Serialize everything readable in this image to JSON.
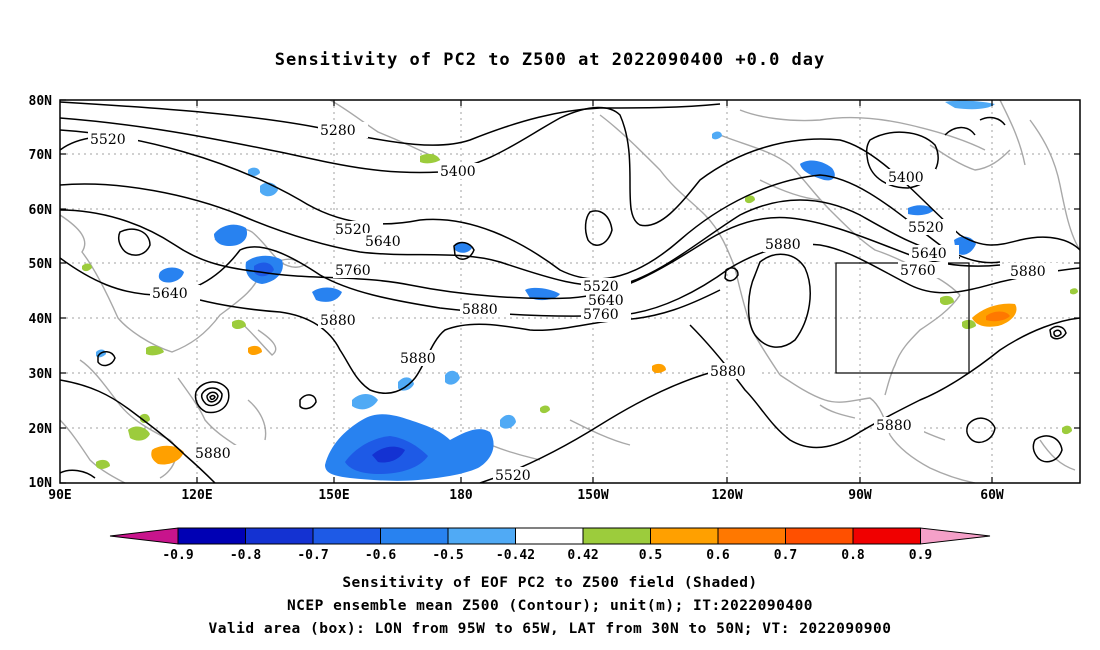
{
  "title": "Sensitivity of PC2 to Z500 at 2022090400 +0.0 day",
  "map": {
    "lat_labels": [
      "80N",
      "70N",
      "60N",
      "50N",
      "40N",
      "30N",
      "20N",
      "10N"
    ],
    "lon_labels": [
      "90E",
      "120E",
      "150E",
      "180",
      "150W",
      "120W",
      "90W",
      "60W"
    ],
    "contour_labels": [
      {
        "text": "5280"
      },
      {
        "text": "5400"
      },
      {
        "text": "5520"
      },
      {
        "text": "5520"
      },
      {
        "text": "5640"
      },
      {
        "text": "5760"
      },
      {
        "text": "5640"
      },
      {
        "text": "5880"
      },
      {
        "text": "5880"
      },
      {
        "text": "5880"
      },
      {
        "text": "5880"
      },
      {
        "text": "5520"
      },
      {
        "text": "5640"
      },
      {
        "text": "5760"
      },
      {
        "text": "5880"
      },
      {
        "text": "5880"
      },
      {
        "text": "5400"
      },
      {
        "text": "5520"
      },
      {
        "text": "5640"
      },
      {
        "text": "5760"
      },
      {
        "text": "5880"
      },
      {
        "text": "5880"
      },
      {
        "text": "5520"
      }
    ],
    "valid_box": {
      "lon_from": "95W",
      "lon_to": "65W",
      "lat_from": "30N",
      "lat_to": "50N"
    }
  },
  "colorbar": {
    "labels": [
      "-0.9",
      "-0.8",
      "-0.7",
      "-0.6",
      "-0.5",
      "-0.42",
      "0.42",
      "0.5",
      "0.6",
      "0.7",
      "0.8",
      "0.9"
    ],
    "colors": [
      "#0000b4",
      "#1432d2",
      "#1e5ae6",
      "#2882f0",
      "#50aaf5",
      "#ffffff",
      "#9ccc3c",
      "#ffa000",
      "#ff7800",
      "#ff5000",
      "#f00000"
    ],
    "end_low_color": "#c8148c",
    "end_high_color": "#f5a0c8"
  },
  "captions": {
    "line1": "Sensitivity of EOF PC2 to Z500 field (Shaded)",
    "line2": "NCEP ensemble mean Z500 (Contour); unit(m); IT:2022090400",
    "line3": "Valid area (box): LON from 95W to 65W, LAT from 30N to 50N; VT: 2022090900"
  }
}
